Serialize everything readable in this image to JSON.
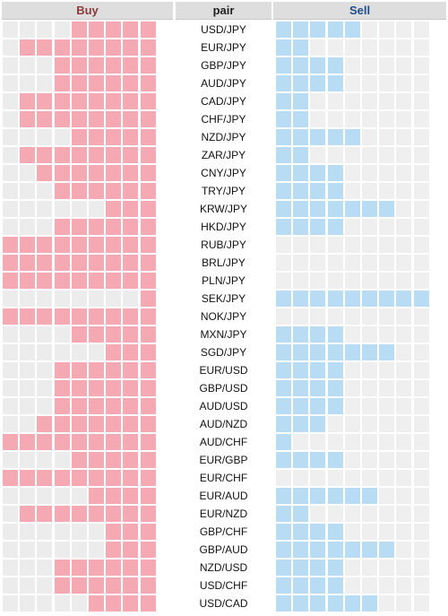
{
  "headers": {
    "buy": "Buy",
    "pair": "pair",
    "sell": "Sell"
  },
  "colors": {
    "buy_fill": "#f4a9b3",
    "sell_fill": "#b7dcf3",
    "empty": "#ececec",
    "buy_header_text": "#8a3b3b",
    "sell_header_text": "#1f4f8a"
  },
  "max_cells_per_side": 9,
  "rows": [
    {
      "pair": "USD/JPY",
      "buy": 5,
      "sell": 5
    },
    {
      "pair": "EUR/JPY",
      "buy": 8,
      "sell": 2
    },
    {
      "pair": "GBP/JPY",
      "buy": 6,
      "sell": 4
    },
    {
      "pair": "AUD/JPY",
      "buy": 6,
      "sell": 4
    },
    {
      "pair": "CAD/JPY",
      "buy": 8,
      "sell": 2
    },
    {
      "pair": "CHF/JPY",
      "buy": 8,
      "sell": 2
    },
    {
      "pair": "NZD/JPY",
      "buy": 5,
      "sell": 5
    },
    {
      "pair": "ZAR/JPY",
      "buy": 8,
      "sell": 2
    },
    {
      "pair": "CNY/JPY",
      "buy": 7,
      "sell": 4
    },
    {
      "pair": "TRY/JPY",
      "buy": 6,
      "sell": 4
    },
    {
      "pair": "KRW/JPY",
      "buy": 3,
      "sell": 7
    },
    {
      "pair": "HKD/JPY",
      "buy": 6,
      "sell": 4
    },
    {
      "pair": "RUB/JPY",
      "buy": 9,
      "sell": 0
    },
    {
      "pair": "BRL/JPY",
      "buy": 9,
      "sell": 0
    },
    {
      "pair": "PLN/JPY",
      "buy": 9,
      "sell": 0
    },
    {
      "pair": "SEK/JPY",
      "buy": 1,
      "sell": 9
    },
    {
      "pair": "NOK/JPY",
      "buy": 9,
      "sell": 0
    },
    {
      "pair": "MXN/JPY",
      "buy": 5,
      "sell": 4
    },
    {
      "pair": "SGD/JPY",
      "buy": 3,
      "sell": 7
    },
    {
      "pair": "EUR/USD",
      "buy": 6,
      "sell": 4
    },
    {
      "pair": "GBP/USD",
      "buy": 6,
      "sell": 4
    },
    {
      "pair": "AUD/USD",
      "buy": 6,
      "sell": 4
    },
    {
      "pair": "AUD/NZD",
      "buy": 7,
      "sell": 3
    },
    {
      "pair": "AUD/CHF",
      "buy": 9,
      "sell": 1
    },
    {
      "pair": "EUR/GBP",
      "buy": 5,
      "sell": 4
    },
    {
      "pair": "EUR/CHF",
      "buy": 9,
      "sell": 0
    },
    {
      "pair": "EUR/AUD",
      "buy": 4,
      "sell": 6
    },
    {
      "pair": "EUR/NZD",
      "buy": 8,
      "sell": 2
    },
    {
      "pair": "GBP/CHF",
      "buy": 3,
      "sell": 4
    },
    {
      "pair": "GBP/AUD",
      "buy": 3,
      "sell": 7
    },
    {
      "pair": "NZD/USD",
      "buy": 6,
      "sell": 4
    },
    {
      "pair": "USD/CHF",
      "buy": 6,
      "sell": 4
    },
    {
      "pair": "USD/CAD",
      "buy": 4,
      "sell": 6
    }
  ]
}
